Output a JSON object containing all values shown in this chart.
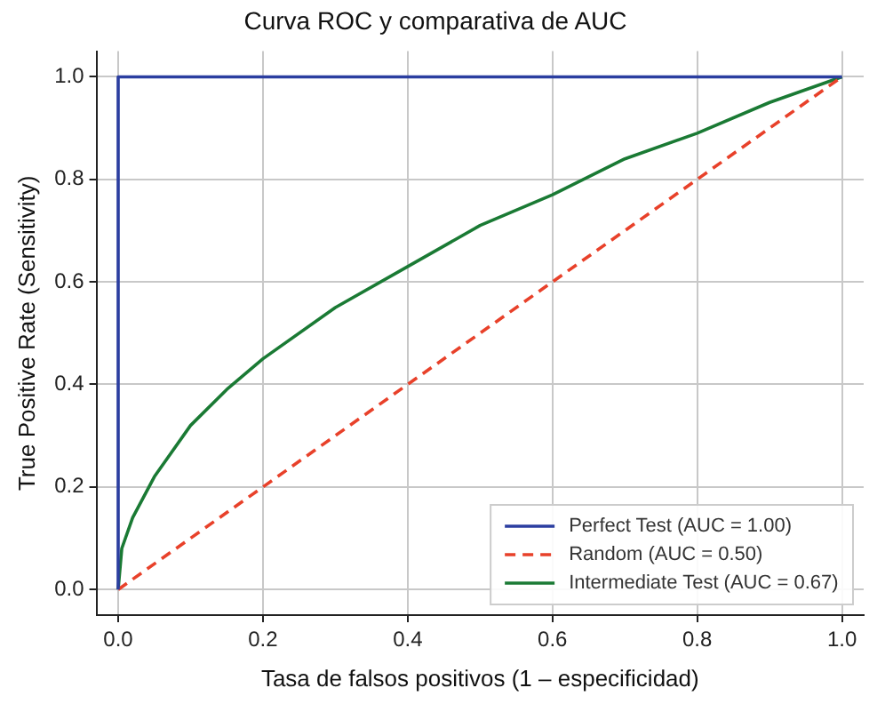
{
  "chart_data": {
    "type": "line",
    "title": "Curva ROC y comparativa de AUC",
    "xlabel": "Tasa de falsos positivos (1 – especificidad)",
    "ylabel": "True Positive Rate (Sensitivity)",
    "xlim": [
      -0.03,
      1.03
    ],
    "ylim": [
      -0.05,
      1.05
    ],
    "xticks": [
      {
        "value": 0,
        "label": "0.0"
      },
      0.2,
      0.4,
      0.6,
      0.8,
      {
        "value": 1,
        "label": "1.0"
      }
    ],
    "yticks": [
      {
        "value": 0,
        "label": "0.0"
      },
      0.2,
      0.4,
      0.6,
      0.8,
      {
        "value": 1,
        "label": "1.0"
      }
    ],
    "grid": true,
    "legend": "bottom right",
    "marker": "none",
    "series": [
      {
        "name": "Perfect Test (AUC = 1.00)",
        "color": "#2b3ea0",
        "line_style": "solid",
        "x": [
          0,
          0,
          1
        ],
        "values": [
          0,
          1,
          1
        ]
      },
      {
        "name": "Random (AUC = 0.50)",
        "color": "#e8412a",
        "line_style": "dashed",
        "x": [
          0,
          1
        ],
        "values": [
          0,
          1
        ]
      },
      {
        "name": "Intermediate Test (AUC = 0.67)",
        "color": "#1a7a34",
        "line_style": "solid",
        "x": [
          0,
          0.005,
          0.01,
          0.02,
          0.05,
          0.1,
          0.15,
          0.2,
          0.3,
          0.4,
          0.5,
          0.6,
          0.7,
          0.8,
          0.9,
          1
        ],
        "values": [
          0,
          0.08,
          0.1,
          0.14,
          0.22,
          0.32,
          0.39,
          0.45,
          0.55,
          0.63,
          0.71,
          0.77,
          0.84,
          0.89,
          0.95,
          1
        ]
      }
    ]
  }
}
